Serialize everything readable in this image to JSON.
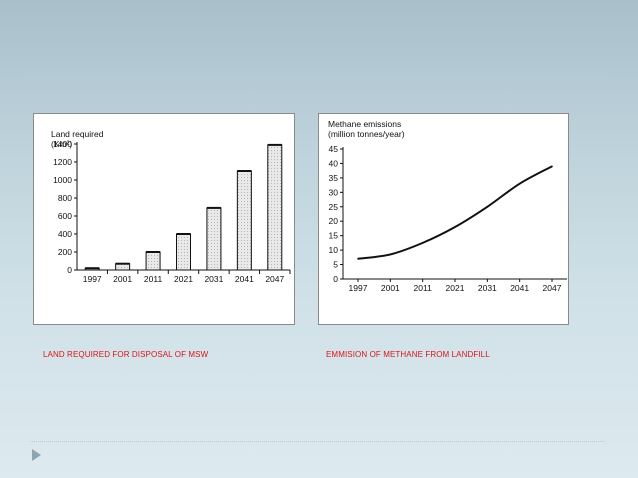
{
  "slide": {
    "caption_left": "LAND REQUIRED FOR DISPOSAL OF MSW",
    "caption_right": "EMMISION OF METHANE FROM LANDFILL",
    "caption_color": "#d8161b"
  },
  "chart_data": [
    {
      "type": "bar",
      "ylabel": "Land required (Km²)",
      "categories": [
        "1997",
        "2001",
        "2011",
        "2021",
        "2031",
        "2041",
        "2047"
      ],
      "values": [
        20,
        70,
        200,
        400,
        690,
        1100,
        1390
      ],
      "ylim": [
        0,
        1400
      ],
      "yticks": [
        0,
        200,
        400,
        600,
        800,
        1000,
        1200,
        1400
      ],
      "grid": false
    },
    {
      "type": "line",
      "ylabel": "Methane emissions (million tonnes/year)",
      "categories": [
        "1997",
        "2001",
        "2011",
        "2021",
        "2031",
        "2041",
        "2047"
      ],
      "values": [
        7,
        8.5,
        12.5,
        18,
        25,
        33,
        39
      ],
      "ylim": [
        0,
        45
      ],
      "yticks": [
        0,
        5,
        10,
        15,
        20,
        25,
        30,
        35,
        40,
        45
      ],
      "grid": false
    }
  ]
}
